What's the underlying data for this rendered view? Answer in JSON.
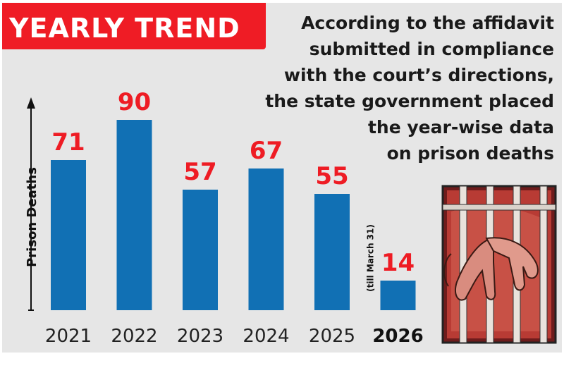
{
  "header": {
    "title": "YEARLY TREND"
  },
  "caption": {
    "lines": [
      "According to the affidavit",
      "submitted in compliance",
      "with the court’s directions,",
      "the state government placed",
      "the year-wise data",
      "on prison deaths"
    ]
  },
  "chart_data": {
    "type": "bar",
    "categories": [
      "2021",
      "2022",
      "2023",
      "2024",
      "2025",
      "2026"
    ],
    "values": [
      71,
      90,
      57,
      67,
      55,
      14
    ],
    "ylabel": "Prison Deaths",
    "xlabel": "",
    "ylim": [
      0,
      90
    ],
    "highlight_category": "2026",
    "annotations": [
      {
        "category": "2026",
        "text": "(till March 31)"
      }
    ],
    "grid": false,
    "legend": "none"
  },
  "colors": {
    "bar": "#1170b4",
    "value_label": "#ee1c24",
    "title_bg": "#ef1c25",
    "panel_bg": "#e6e6e6"
  },
  "illustration": {
    "icon": "prison-bars-hands-icon"
  }
}
